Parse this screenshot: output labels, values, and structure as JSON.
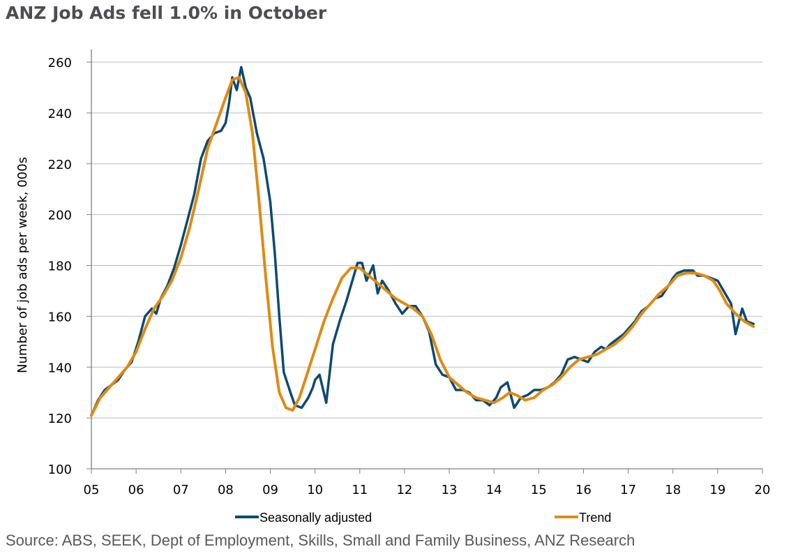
{
  "title": "ANZ Job Ads fell 1.0% in October",
  "source": "Source: ABS, SEEK, Dept of Employment, Skills, Small and Family Business, ANZ Research",
  "chart_data": {
    "type": "line",
    "title": "ANZ Job Ads fell 1.0% in October",
    "xlabel": "",
    "ylabel": "Number of job ads per week, 000s",
    "xlim": [
      2005,
      2020
    ],
    "ylim": [
      100,
      265
    ],
    "yticks": [
      100,
      120,
      140,
      160,
      180,
      200,
      220,
      240,
      260
    ],
    "ytick_labels": [
      "100",
      "120",
      "140",
      "160",
      "180",
      "200",
      "220",
      "240",
      "260"
    ],
    "xticks": [
      2005,
      2006,
      2007,
      2008,
      2009,
      2010,
      2011,
      2012,
      2013,
      2014,
      2015,
      2016,
      2017,
      2018,
      2019,
      2020
    ],
    "xtick_labels": [
      "05",
      "06",
      "07",
      "08",
      "09",
      "10",
      "11",
      "12",
      "13",
      "14",
      "15",
      "16",
      "17",
      "18",
      "19",
      "20"
    ],
    "grid": true,
    "legend": "bottom",
    "colors": {
      "Seasonally adjusted": "#0b4a72",
      "Trend": "#e08a12",
      "grid": "#b4bcc2",
      "axis": "#7f7f7f"
    },
    "series": [
      {
        "name": "Seasonally adjusted",
        "x": [
          2005.0,
          2005.15,
          2005.3,
          2005.45,
          2005.6,
          2005.75,
          2005.9,
          2006.05,
          2006.2,
          2006.35,
          2006.45,
          2006.55,
          2006.7,
          2006.85,
          2007.0,
          2007.15,
          2007.3,
          2007.45,
          2007.6,
          2007.75,
          2007.9,
          2008.0,
          2008.08,
          2008.15,
          2008.25,
          2008.35,
          2008.45,
          2008.55,
          2008.7,
          2008.85,
          2009.0,
          2009.1,
          2009.2,
          2009.3,
          2009.45,
          2009.55,
          2009.7,
          2009.85,
          2009.95,
          2010.0,
          2010.1,
          2010.25,
          2010.4,
          2010.55,
          2010.7,
          2010.85,
          2010.95,
          2011.05,
          2011.15,
          2011.3,
          2011.4,
          2011.5,
          2011.65,
          2011.8,
          2011.95,
          2012.1,
          2012.25,
          2012.4,
          2012.55,
          2012.7,
          2012.85,
          2013.0,
          2013.15,
          2013.3,
          2013.45,
          2013.6,
          2013.75,
          2013.9,
          2014.05,
          2014.15,
          2014.3,
          2014.45,
          2014.6,
          2014.75,
          2014.9,
          2015.05,
          2015.2,
          2015.35,
          2015.5,
          2015.65,
          2015.8,
          2015.95,
          2016.1,
          2016.25,
          2016.4,
          2016.5,
          2016.6,
          2016.75,
          2016.9,
          2017.0,
          2017.15,
          2017.3,
          2017.45,
          2017.6,
          2017.75,
          2017.9,
          2018.0,
          2018.1,
          2018.25,
          2018.35,
          2018.45,
          2018.55,
          2018.7,
          2018.85,
          2019.0,
          2019.1,
          2019.2,
          2019.3,
          2019.4,
          2019.55,
          2019.65,
          2019.8
        ],
        "values": [
          121,
          127,
          131,
          133,
          135,
          139,
          142,
          150,
          160,
          163,
          161,
          167,
          172,
          179,
          188,
          198,
          208,
          222,
          229,
          232,
          233,
          236,
          244,
          254,
          249,
          258,
          250,
          246,
          232,
          222,
          205,
          185,
          160,
          138,
          130,
          125,
          124,
          128,
          132,
          135,
          137,
          126,
          149,
          158,
          166,
          175,
          181,
          181,
          174,
          180,
          169,
          174,
          170,
          165,
          161,
          164,
          164,
          160,
          154,
          141,
          137,
          136,
          131,
          131,
          130,
          127,
          127,
          125,
          128,
          132,
          134,
          124,
          128,
          129,
          131,
          131,
          132,
          134,
          137,
          143,
          144,
          143,
          142,
          146,
          148,
          147,
          149,
          151,
          153,
          155,
          158,
          162,
          164,
          167,
          168,
          172,
          175,
          177,
          178,
          178,
          178,
          176,
          176,
          175,
          174,
          171,
          168,
          165,
          153,
          163,
          158,
          157
        ]
      },
      {
        "name": "Trend",
        "x": [
          2005.0,
          2005.2,
          2005.4,
          2005.6,
          2005.8,
          2006.0,
          2006.2,
          2006.4,
          2006.6,
          2006.8,
          2007.0,
          2007.2,
          2007.4,
          2007.6,
          2007.8,
          2008.0,
          2008.15,
          2008.3,
          2008.45,
          2008.6,
          2008.75,
          2008.9,
          2009.05,
          2009.2,
          2009.35,
          2009.5,
          2009.65,
          2009.8,
          2010.0,
          2010.2,
          2010.4,
          2010.6,
          2010.8,
          2011.0,
          2011.2,
          2011.4,
          2011.6,
          2011.8,
          2012.0,
          2012.2,
          2012.4,
          2012.6,
          2012.8,
          2013.0,
          2013.2,
          2013.4,
          2013.6,
          2013.8,
          2014.0,
          2014.2,
          2014.35,
          2014.5,
          2014.7,
          2014.9,
          2015.1,
          2015.3,
          2015.5,
          2015.7,
          2015.9,
          2016.1,
          2016.3,
          2016.5,
          2016.7,
          2016.9,
          2017.1,
          2017.3,
          2017.5,
          2017.7,
          2017.9,
          2018.1,
          2018.3,
          2018.5,
          2018.7,
          2018.9,
          2019.05,
          2019.2,
          2019.4,
          2019.6,
          2019.8
        ],
        "values": [
          121,
          128,
          132,
          136,
          140,
          146,
          155,
          163,
          168,
          174,
          183,
          195,
          210,
          226,
          236,
          246,
          253,
          254,
          248,
          232,
          205,
          175,
          148,
          130,
          124,
          123,
          128,
          136,
          147,
          158,
          167,
          175,
          179,
          179,
          176,
          173,
          170,
          167,
          165,
          163,
          160,
          153,
          143,
          136,
          133,
          130,
          128,
          127,
          126,
          128,
          130,
          129,
          127,
          128,
          131,
          133,
          136,
          140,
          143,
          144,
          145,
          147,
          149,
          152,
          156,
          161,
          165,
          169,
          172,
          176,
          177,
          177,
          176,
          174,
          170,
          165,
          161,
          158,
          156
        ]
      }
    ]
  }
}
